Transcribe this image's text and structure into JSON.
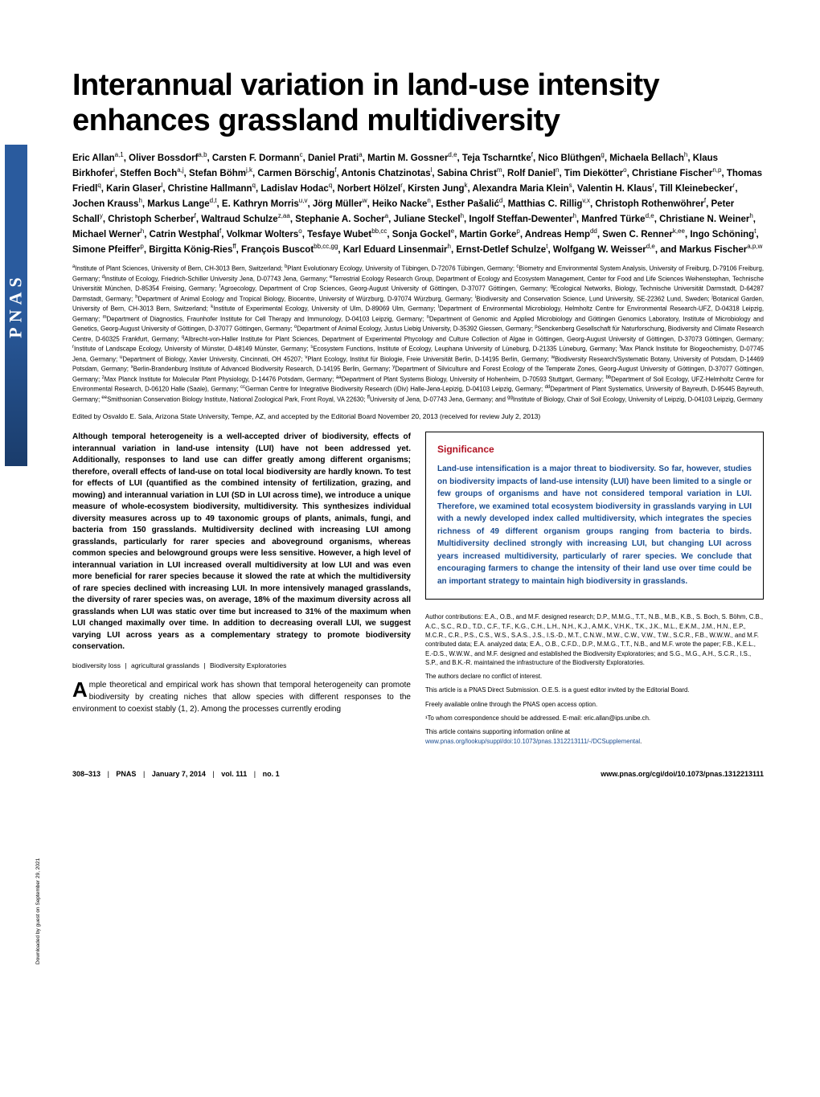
{
  "sideLogo": "PNAS",
  "title": "Interannual variation in land-use intensity enhances grassland multidiversity",
  "authorsHtml": "Eric Allan<sup>a,1</sup>, Oliver Bossdorf<sup>a,b</sup>, Carsten F. Dormann<sup>c</sup>, Daniel Prati<sup>a</sup>, Martin M. Gossner<sup>d,e</sup>, Teja Tscharntke<sup>f</sup>, Nico Blüthgen<sup>g</sup>, Michaela Bellach<sup>h</sup>, Klaus Birkhofer<sup>i</sup>, Steffen Boch<sup>a,j</sup>, Stefan Böhm<sup>j,k</sup>, Carmen Börschig<sup>f</sup>, Antonis Chatzinotas<sup>l</sup>, Sabina Christ<sup>m</sup>, Rolf Daniel<sup>n</sup>, Tim Diekötter<sup>o</sup>, Christiane Fischer<sup>n,p</sup>, Thomas Friedl<sup>q</sup>, Karin Glaser<sup>l</sup>, Christine Hallmann<sup>q</sup>, Ladislav Hodac<sup>q</sup>, Norbert Hölzel<sup>r</sup>, Kirsten Jung<sup>k</sup>, Alexandra Maria Klein<sup>s</sup>, Valentin H. Klaus<sup>r</sup>, Till Kleinebecker<sup>r</sup>, Jochen Krauss<sup>h</sup>, Markus Lange<sup>d,t</sup>, E. Kathryn Morris<sup>u,v</sup>, Jörg Müller<sup>w</sup>, Heiko Nacke<sup>n</sup>, Esther Pašalić<sup>d</sup>, Matthias C. Rillig<sup>v,x</sup>, Christoph Rothenwöhrer<sup>f</sup>, Peter Schall<sup>y</sup>, Christoph Scherber<sup>f</sup>, Waltraud Schulze<sup>z,aa</sup>, Stephanie A. Socher<sup>a</sup>, Juliane Steckel<sup>h</sup>, Ingolf Steffan-Dewenter<sup>h</sup>, Manfred Türke<sup>d,e</sup>, Christiane N. Weiner<sup>h</sup>, Michael Werner<sup>h</sup>, Catrin Westphal<sup>f</sup>, Volkmar Wolters<sup>o</sup>, Tesfaye Wubet<sup>bb,cc</sup>, Sonja Gockel<sup>e</sup>, Martin Gorke<sup>p</sup>, Andreas Hemp<sup>dd</sup>, Swen C. Renner<sup>k,ee</sup>, Ingo Schöning<sup>t</sup>, Simone Pfeiffer<sup>p</sup>, Birgitta König-Ries<sup>ff</sup>, François Buscot<sup>bb,cc,gg</sup>, Karl Eduard Linsenmair<sup>h</sup>, Ernst-Detlef Schulze<sup>t</sup>, Wolfgang W. Weisser<sup>d,e</sup>, and Markus Fischer<sup>a,p,w</sup>",
  "affiliationsHtml": "<sup>a</sup>Institute of Plant Sciences, University of Bern, CH-3013 Bern, Switzerland; <sup>b</sup>Plant Evolutionary Ecology, University of Tübingen, D-72076 Tübingen, Germany; <sup>c</sup>Biometry and Environmental System Analysis, University of Freiburg, D-79106 Freiburg, Germany; <sup>d</sup>Institute of Ecology, Friedrich-Schiller University Jena, D-07743 Jena, Germany; <sup>e</sup>Terrestrial Ecology Research Group, Department of Ecology and Ecosystem Management, Center for Food and Life Sciences Weihenstephan, Technische Universität München, D-85354 Freising, Germany; <sup>f</sup>Agroecology, Department of Crop Sciences, Georg-August University of Göttingen, D-37077 Göttingen, Germany; <sup>g</sup>Ecological Networks, Biology, Technische Universität Darmstadt, D-64287 Darmstadt, Germany; <sup>h</sup>Department of Animal Ecology and Tropical Biology, Biocentre, University of Würzburg, D-97074 Würzburg, Germany; <sup>i</sup>Biodiversity and Conservation Science, Lund University, SE-22362 Lund, Sweden; <sup>j</sup>Botanical Garden, University of Bern, CH-3013 Bern, Switzerland; <sup>k</sup>Institute of Experimental Ecology, University of Ulm, D-89069 Ulm, Germany; <sup>l</sup>Department of Environmental Microbiology, Helmholtz Centre for Environmental Research-UFZ, D-04318 Leipzig, Germany; <sup>m</sup>Department of Diagnostics, Fraunhofer Institute for Cell Therapy and Immunology, D-04103 Leipzig, Germany; <sup>n</sup>Department of Genomic and Applied Microbiology and Göttingen Genomics Laboratory, Institute of Microbiology and Genetics, Georg-August University of Göttingen, D-37077 Göttingen, Germany; <sup>o</sup>Department of Animal Ecology, Justus Liebig University, D-35392 Giessen, Germany; <sup>p</sup>Senckenberg Gesellschaft für Naturforschung, Biodiversity and Climate Research Centre, D-60325 Frankfurt, Germany; <sup>q</sup>Albrecht-von-Haller Institute for Plant Sciences, Department of Experimental Phycology and Culture Collection of Algae in Göttingen, Georg-August University of Göttingen, D-37073 Göttingen, Germany; <sup>r</sup>Institute of Landscape Ecology, University of Münster, D-48149 Münster, Germany; <sup>s</sup>Ecosystem Functions, Institute of Ecology, Leuphana University of Lüneburg, D-21335 Lüneburg, Germany; <sup>t</sup>Max Planck Institute for Biogeochemistry, D-07745 Jena, Germany; <sup>u</sup>Department of Biology, Xavier University, Cincinnati, OH 45207; <sup>v</sup>Plant Ecology, Institut für Biologie, Freie Universität Berlin, D-14195 Berlin, Germany; <sup>w</sup>Biodiversity Research/Systematic Botany, University of Potsdam, D-14469 Potsdam, Germany; <sup>x</sup>Berlin-Brandenburg Institute of Advanced Biodiversity Research, D-14195 Berlin, Germany; <sup>y</sup>Department of Silviculture and Forest Ecology of the Temperate Zones, Georg-August University of Göttingen, D-37077 Göttingen, Germany; <sup>z</sup>Max Planck Institute for Molecular Plant Physiology, D-14476 Potsdam, Germany; <sup>aa</sup>Department of Plant Systems Biology, University of Hohenheim, D-70593 Stuttgart, Germany; <sup>bb</sup>Department of Soil Ecology, UFZ-Helmholtz Centre for Environmental Research, D-06120 Halle (Saale), Germany; <sup>cc</sup>German Centre for Integrative Biodiversity Research (iDiv) Halle-Jena-Lepizig, D-04103 Leipzig, Germany; <sup>dd</sup>Department of Plant Systematics, University of Bayreuth, D-95445 Bayreuth, Germany; <sup>ee</sup>Smithsonian Conservation Biology Institute, National Zoological Park, Front Royal, VA 22630; <sup>ff</sup>University of Jena, D-07743 Jena, Germany; and <sup>gg</sup>Institute of Biology, Chair of Soil Ecology, University of Leipzig, D-04103 Leipzig, Germany",
  "editedBy": "Edited by Osvaldo E. Sala, Arizona State University, Tempe, AZ, and accepted by the Editorial Board November 20, 2013 (received for review July 2, 2013)",
  "abstract": "Although temporal heterogeneity is a well-accepted driver of biodiversity, effects of interannual variation in land-use intensity (LUI) have not been addressed yet. Additionally, responses to land use can differ greatly among different organisms; therefore, overall effects of land-use on total local biodiversity are hardly known. To test for effects of LUI (quantified as the combined intensity of fertilization, grazing, and mowing) and interannual variation in LUI (SD in LUI across time), we introduce a unique measure of whole-ecosystem biodiversity, multidiversity. This synthesizes individual diversity measures across up to 49 taxonomic groups of plants, animals, fungi, and bacteria from 150 grasslands. Multidiversity declined with increasing LUI among grasslands, particularly for rarer species and aboveground organisms, whereas common species and belowground groups were less sensitive. However, a high level of interannual variation in LUI increased overall multidiversity at low LUI and was even more beneficial for rarer species because it slowed the rate at which the multidiversity of rare species declined with increasing LUI. In more intensively managed grasslands, the diversity of rarer species was, on average, 18% of the maximum diversity across all grasslands when LUI was static over time but increased to 31% of the maximum when LUI changed maximally over time. In addition to decreasing overall LUI, we suggest varying LUI across years as a complementary strategy to promote biodiversity conservation.",
  "keywords": [
    "biodiversity loss",
    "agricultural grasslands",
    "Biodiversity Exploratories"
  ],
  "bodyStart": "mple theoretical and empirical work has shown that temporal heterogeneity can promote biodiversity by creating niches that allow species with different responses to the environment to coexist stably (1, 2). Among the processes currently eroding",
  "dropcap": "A",
  "significance": {
    "heading": "Significance",
    "text": "Land-use intensification is a major threat to biodiversity. So far, however, studies on biodiversity impacts of land-use intensity (LUI) have been limited to a single or few groups of organisms and have not considered temporal variation in LUI. Therefore, we examined total ecosystem biodiversity in grasslands varying in LUI with a newly developed index called multidiversity, which integrates the species richness of 49 different organism groups ranging from bacteria to birds. Multidiversity declined strongly with increasing LUI, but changing LUI across years increased multidiversity, particularly of rarer species. We conclude that encouraging farmers to change the intensity of their land use over time could be an important strategy to maintain high biodiversity in grasslands."
  },
  "meta": {
    "contributions": "Author contributions: E.A., O.B., and M.F. designed research; D.P., M.M.G., T.T., N.B., M.B., K.B., S. Boch, S. Böhm, C.B., A.C., S.C., R.D., T.D., C.F., T.F., K.G., C.H., L.H., N.H., K.J., A.M.K., V.H.K., T.K., J.K., M.L., E.K.M., J.M., H.N., E.P., M.C.R., C.R., P.S., C.S., W.S., S.A.S., J.S., I.S.-D., M.T., C.N.W., M.W., C.W., V.W., T.W., S.C.R., F.B., W.W.W., and M.F. contributed data; E.A. analyzed data; E.A., O.B., C.F.D., D.P., M.M.G., T.T., N.B., and M.F. wrote the paper; F.B., K.E.L., E.-D.S., W.W.W., and M.F. designed and established the Biodiversity Exploratories; and S.G., M.G., A.H., S.C.R., I.S., S.P., and B.K.-R. maintained the infrastructure of the Biodiversity Exploratories.",
    "conflict": "The authors declare no conflict of interest.",
    "editorial": "This article is a PNAS Direct Submission. O.E.S. is a guest editor invited by the Editorial Board.",
    "freely": "Freely available online through the PNAS open access option.",
    "correspondence": "¹To whom correspondence should be addressed. E-mail: eric.allan@ips.unibe.ch.",
    "supporting": "This article contains supporting information online at ",
    "supportingLink": "www.pnas.org/lookup/suppl/doi:10.1073/pnas.1312213111/-/DCSupplemental",
    "supportingEnd": "."
  },
  "footer": {
    "pageRange": "308–313",
    "journal": "PNAS",
    "date": "January 7, 2014",
    "volume": "vol. 111",
    "issue": "no. 1",
    "doi": "www.pnas.org/cgi/doi/10.1073/pnas.1312213111"
  },
  "downloadNote": "Downloaded by guest on September 29, 2021"
}
